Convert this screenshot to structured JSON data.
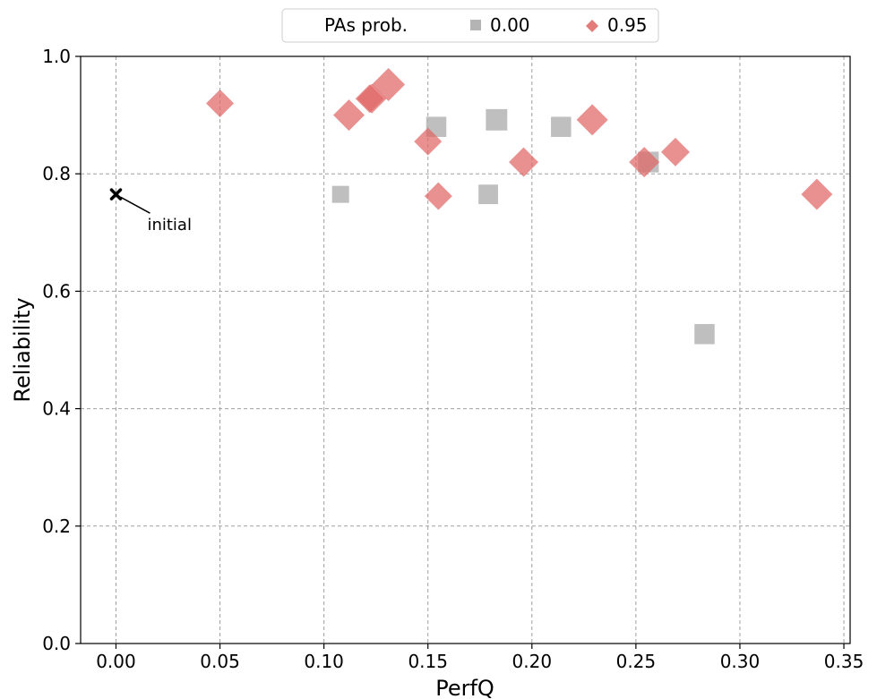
{
  "chart_data": {
    "type": "scatter",
    "xlabel": "PerfQ",
    "ylabel": "Reliability",
    "xlim": [
      -0.017,
      0.353
    ],
    "ylim": [
      0.0,
      1.0
    ],
    "xticks": [
      "0.00",
      "0.05",
      "0.10",
      "0.15",
      "0.20",
      "0.25",
      "0.30",
      "0.35"
    ],
    "yticks": [
      "0.0",
      "0.2",
      "0.4",
      "0.6",
      "0.8",
      "1.0"
    ],
    "grid": true,
    "legend": {
      "title": "PAs prob.",
      "placement": "top-center",
      "entries": [
        "0.00",
        "0.95"
      ]
    },
    "colors": {
      "gray": "#b4b4b4",
      "red": "#e37b7b",
      "initial": "#000000"
    },
    "series": [
      {
        "name": "0.00",
        "marker": "square",
        "points": [
          {
            "x": 0.108,
            "y": 0.765,
            "size": 0.5
          },
          {
            "x": 0.154,
            "y": 0.88,
            "size": 0.75
          },
          {
            "x": 0.179,
            "y": 0.765,
            "size": 0.7
          },
          {
            "x": 0.183,
            "y": 0.892,
            "size": 0.85
          },
          {
            "x": 0.214,
            "y": 0.88,
            "size": 0.75
          },
          {
            "x": 0.256,
            "y": 0.82,
            "size": 0.8
          },
          {
            "x": 0.283,
            "y": 0.527,
            "size": 0.75
          }
        ]
      },
      {
        "name": "0.95",
        "marker": "diamond",
        "points": [
          {
            "x": 0.05,
            "y": 0.92,
            "size": 0.65
          },
          {
            "x": 0.112,
            "y": 0.9,
            "size": 0.85
          },
          {
            "x": 0.122,
            "y": 0.928,
            "size": 0.7
          },
          {
            "x": 0.123,
            "y": 0.928,
            "size": 0.75
          },
          {
            "x": 0.131,
            "y": 0.952,
            "size": 0.95
          },
          {
            "x": 0.15,
            "y": 0.855,
            "size": 0.65
          },
          {
            "x": 0.155,
            "y": 0.762,
            "size": 0.65
          },
          {
            "x": 0.196,
            "y": 0.82,
            "size": 0.75
          },
          {
            "x": 0.229,
            "y": 0.892,
            "size": 0.85
          },
          {
            "x": 0.254,
            "y": 0.82,
            "size": 0.8
          },
          {
            "x": 0.269,
            "y": 0.837,
            "size": 0.7
          },
          {
            "x": 0.337,
            "y": 0.765,
            "size": 0.85
          }
        ]
      }
    ],
    "initial_point": {
      "x": 0.0,
      "y": 0.765
    },
    "annotation": {
      "text": "initial",
      "x": 0.0,
      "y": 0.765
    }
  }
}
